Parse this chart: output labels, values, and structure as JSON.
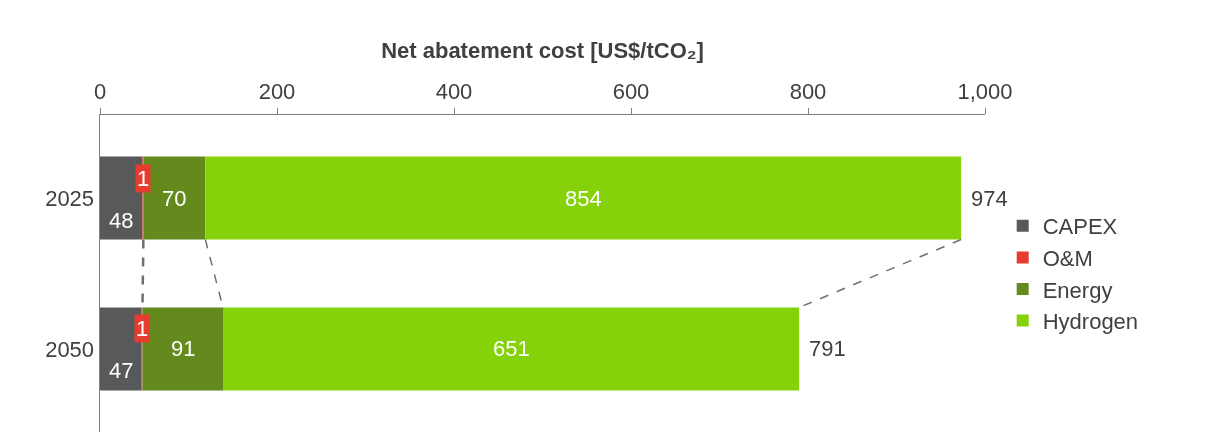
{
  "chart_data": {
    "type": "bar",
    "orientation": "horizontal",
    "stacked": true,
    "xlabel": "Net abatement cost [US$/tCO₂]",
    "categories": [
      "2025",
      "2050"
    ],
    "series": [
      {
        "name": "CAPEX",
        "color": "#58595b",
        "values": [
          48,
          47
        ]
      },
      {
        "name": "O&M",
        "color": "#e63c2f",
        "values": [
          1,
          1
        ]
      },
      {
        "name": "Energy",
        "color": "#648a1e",
        "values": [
          70,
          91
        ]
      },
      {
        "name": "Hydrogen",
        "color": "#86d20a",
        "values": [
          854,
          651
        ]
      }
    ],
    "totals": [
      "974",
      "791"
    ],
    "data_labels": true,
    "xlim": [
      0,
      1000
    ],
    "xticks": [
      0,
      200,
      400,
      600,
      800,
      {
        "value": 1000,
        "label": "1,000"
      }
    ],
    "grid": false,
    "legend": "right"
  }
}
